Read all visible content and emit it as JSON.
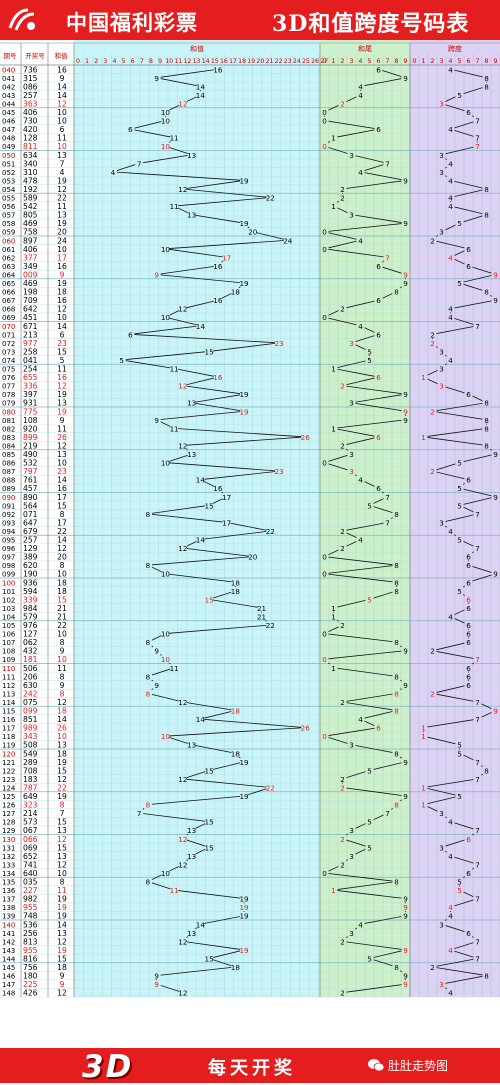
{
  "header": {
    "lottery_name": "中国福利彩票",
    "title": "3D和值跨度号码表"
  },
  "footer": {
    "logo_text": "3D",
    "slogan": "每天开奖",
    "brand": "肚肚走势图"
  },
  "colors": {
    "banner": "#e41e1e",
    "sum_bg": "#c8f4f8",
    "tail_bg": "#cdf0cc",
    "span_bg": "#dcd2f4",
    "highlight": "#e41e1e"
  },
  "table": {
    "columns": {
      "issue": "期号",
      "number": "开奖号",
      "sum": "和值",
      "tail": "和尾",
      "span": "跨度"
    },
    "rows": [
      [
        "040",
        "736",
        "16"
      ],
      [
        "041",
        "315",
        "9"
      ],
      [
        "042",
        "086",
        "14"
      ],
      [
        "043",
        "257",
        "14"
      ],
      [
        "044",
        "363",
        "12"
      ],
      [
        "045",
        "406",
        "10"
      ],
      [
        "046",
        "730",
        "10"
      ],
      [
        "047",
        "420",
        "6"
      ],
      [
        "048",
        "128",
        "11"
      ],
      [
        "049",
        "811",
        "10"
      ],
      [
        "050",
        "634",
        "13"
      ],
      [
        "051",
        "340",
        "7"
      ],
      [
        "052",
        "310",
        "4"
      ],
      [
        "053",
        "478",
        "19"
      ],
      [
        "054",
        "192",
        "12"
      ],
      [
        "055",
        "589",
        "22"
      ],
      [
        "056",
        "542",
        "11"
      ],
      [
        "057",
        "805",
        "13"
      ],
      [
        "058",
        "469",
        "19"
      ],
      [
        "059",
        "758",
        "20"
      ],
      [
        "060",
        "897",
        "24"
      ],
      [
        "061",
        "406",
        "10"
      ],
      [
        "062",
        "377",
        "17"
      ],
      [
        "063",
        "349",
        "16"
      ],
      [
        "064",
        "009",
        "9"
      ],
      [
        "065",
        "469",
        "19"
      ],
      [
        "066",
        "198",
        "18"
      ],
      [
        "067",
        "709",
        "16"
      ],
      [
        "068",
        "642",
        "12"
      ],
      [
        "069",
        "451",
        "10"
      ],
      [
        "070",
        "671",
        "14"
      ],
      [
        "071",
        "213",
        "6"
      ],
      [
        "072",
        "977",
        "23"
      ],
      [
        "073",
        "258",
        "15"
      ],
      [
        "074",
        "041",
        "5"
      ],
      [
        "075",
        "254",
        "11"
      ],
      [
        "076",
        "655",
        "16"
      ],
      [
        "077",
        "336",
        "12"
      ],
      [
        "078",
        "397",
        "19"
      ],
      [
        "079",
        "931",
        "13"
      ],
      [
        "080",
        "775",
        "19"
      ],
      [
        "081",
        "108",
        "9"
      ],
      [
        "082",
        "920",
        "11"
      ],
      [
        "083",
        "899",
        "26"
      ],
      [
        "084",
        "219",
        "12"
      ],
      [
        "085",
        "490",
        "13"
      ],
      [
        "086",
        "532",
        "10"
      ],
      [
        "087",
        "797",
        "23"
      ],
      [
        "088",
        "761",
        "14"
      ],
      [
        "089",
        "457",
        "16"
      ],
      [
        "090",
        "890",
        "17"
      ],
      [
        "091",
        "564",
        "15"
      ],
      [
        "092",
        "071",
        "8"
      ],
      [
        "093",
        "647",
        "17"
      ],
      [
        "094",
        "679",
        "22"
      ],
      [
        "095",
        "257",
        "14"
      ],
      [
        "096",
        "129",
        "12"
      ],
      [
        "097",
        "389",
        "20"
      ],
      [
        "098",
        "620",
        "8"
      ],
      [
        "099",
        "190",
        "10"
      ],
      [
        "100",
        "936",
        "18"
      ],
      [
        "101",
        "594",
        "18"
      ],
      [
        "102",
        "339",
        "15"
      ],
      [
        "103",
        "984",
        "21"
      ],
      [
        "104",
        "579",
        "21"
      ],
      [
        "105",
        "976",
        "22"
      ],
      [
        "106",
        "127",
        "10"
      ],
      [
        "107",
        "062",
        "8"
      ],
      [
        "108",
        "432",
        "9"
      ],
      [
        "109",
        "181",
        "10"
      ],
      [
        "110",
        "506",
        "11"
      ],
      [
        "111",
        "206",
        "8"
      ],
      [
        "112",
        "630",
        "9"
      ],
      [
        "113",
        "242",
        "8"
      ],
      [
        "114",
        "075",
        "12"
      ],
      [
        "115",
        "099",
        "18"
      ],
      [
        "116",
        "851",
        "14"
      ],
      [
        "117",
        "989",
        "26"
      ],
      [
        "118",
        "343",
        "10"
      ],
      [
        "119",
        "508",
        "13"
      ],
      [
        "120",
        "549",
        "18"
      ],
      [
        "121",
        "289",
        "19"
      ],
      [
        "122",
        "708",
        "15"
      ],
      [
        "123",
        "183",
        "12"
      ],
      [
        "124",
        "787",
        "22"
      ],
      [
        "125",
        "649",
        "19"
      ],
      [
        "126",
        "323",
        "8"
      ],
      [
        "127",
        "214",
        "7"
      ],
      [
        "128",
        "573",
        "15"
      ],
      [
        "129",
        "067",
        "13"
      ],
      [
        "130",
        "066",
        "12"
      ],
      [
        "131",
        "069",
        "15"
      ],
      [
        "132",
        "652",
        "13"
      ],
      [
        "133",
        "741",
        "12"
      ],
      [
        "134",
        "640",
        "10"
      ],
      [
        "135",
        "035",
        "8"
      ],
      [
        "136",
        "227",
        "11"
      ],
      [
        "137",
        "982",
        "19"
      ],
      [
        "138",
        "955",
        "19"
      ],
      [
        "139",
        "748",
        "19"
      ],
      [
        "140",
        "536",
        "14"
      ],
      [
        "141",
        "256",
        "13"
      ],
      [
        "142",
        "813",
        "12"
      ],
      [
        "143",
        "955",
        "19"
      ],
      [
        "144",
        "816",
        "15"
      ],
      [
        "145",
        "756",
        "18"
      ],
      [
        "146",
        "180",
        "9"
      ],
      [
        "147",
        "225",
        "9"
      ],
      [
        "148",
        "426",
        "12"
      ]
    ]
  },
  "chart_data": {
    "type": "line",
    "x_label": "期号",
    "series": [
      {
        "name": "和值",
        "values": [
          16,
          9,
          14,
          14,
          12,
          10,
          10,
          6,
          11,
          10,
          13,
          7,
          4,
          19,
          12,
          22,
          11,
          13,
          19,
          20,
          24,
          10,
          17,
          16,
          9,
          19,
          18,
          16,
          12,
          10,
          14,
          6,
          23,
          15,
          5,
          11,
          16,
          12,
          19,
          13,
          19,
          9,
          11,
          26,
          12,
          13,
          10,
          23,
          14,
          16,
          17,
          15,
          8,
          17,
          22,
          14,
          12,
          20,
          8,
          10,
          18,
          18,
          15,
          21,
          21,
          22,
          10,
          8,
          9,
          10,
          11,
          8,
          9,
          8,
          12,
          18,
          14,
          26,
          10,
          13,
          18,
          19,
          15,
          12,
          22,
          19,
          8,
          7,
          15,
          13,
          12,
          15,
          13,
          12,
          10,
          8,
          11,
          19,
          19,
          19,
          14,
          13,
          12,
          19,
          15,
          18,
          9,
          9,
          12
        ],
        "ylim": [
          0,
          27
        ]
      },
      {
        "name": "和尾",
        "values": [
          6,
          9,
          4,
          4,
          2,
          0,
          0,
          6,
          1,
          0,
          3,
          7,
          4,
          9,
          2,
          2,
          1,
          3,
          9,
          0,
          4,
          0,
          7,
          6,
          9,
          9,
          8,
          6,
          2,
          0,
          4,
          6,
          3,
          5,
          5,
          1,
          6,
          2,
          9,
          3,
          9,
          9,
          1,
          6,
          2,
          3,
          0,
          3,
          4,
          6,
          7,
          5,
          8,
          7,
          2,
          4,
          2,
          0,
          8,
          0,
          8,
          8,
          5,
          1,
          1,
          2,
          0,
          8,
          9,
          0,
          1,
          8,
          9,
          8,
          2,
          8,
          4,
          6,
          0,
          3,
          8,
          9,
          5,
          2,
          2,
          9,
          8,
          7,
          5,
          3,
          2,
          5,
          3,
          2,
          0,
          8,
          1,
          9,
          9,
          9,
          4,
          3,
          2,
          9,
          5,
          8,
          9,
          9,
          2
        ],
        "ylim": [
          0,
          9
        ]
      },
      {
        "name": "跨度",
        "values": [
          4,
          8,
          8,
          5,
          3,
          6,
          7,
          4,
          7,
          7,
          3,
          4,
          3,
          4,
          8,
          4,
          4,
          8,
          5,
          3,
          2,
          6,
          4,
          6,
          9,
          5,
          8,
          9,
          4,
          4,
          7,
          2,
          2,
          3,
          4,
          3,
          1,
          3,
          6,
          8,
          2,
          8,
          8,
          1,
          8,
          9,
          5,
          2,
          6,
          5,
          9,
          5,
          7,
          3,
          4,
          5,
          7,
          6,
          6,
          9,
          6,
          5,
          6,
          6,
          4,
          6,
          6,
          6,
          2,
          7,
          6,
          6,
          6,
          2,
          7,
          9,
          7,
          1,
          1,
          5,
          5,
          7,
          8,
          7,
          1,
          5,
          1,
          3,
          4,
          7,
          6,
          3,
          4,
          7,
          6,
          5,
          5,
          7,
          4,
          4,
          3,
          6,
          7,
          4,
          7,
          2,
          8,
          3,
          4
        ],
        "ylim": [
          0,
          9
        ]
      }
    ],
    "highlighted_issues": [
      "044",
      "049",
      "062",
      "064",
      "072",
      "076",
      "077",
      "080",
      "083",
      "087",
      "102",
      "109",
      "113",
      "115",
      "117",
      "118",
      "124",
      "126",
      "130",
      "136",
      "138",
      "143",
      "147"
    ]
  }
}
